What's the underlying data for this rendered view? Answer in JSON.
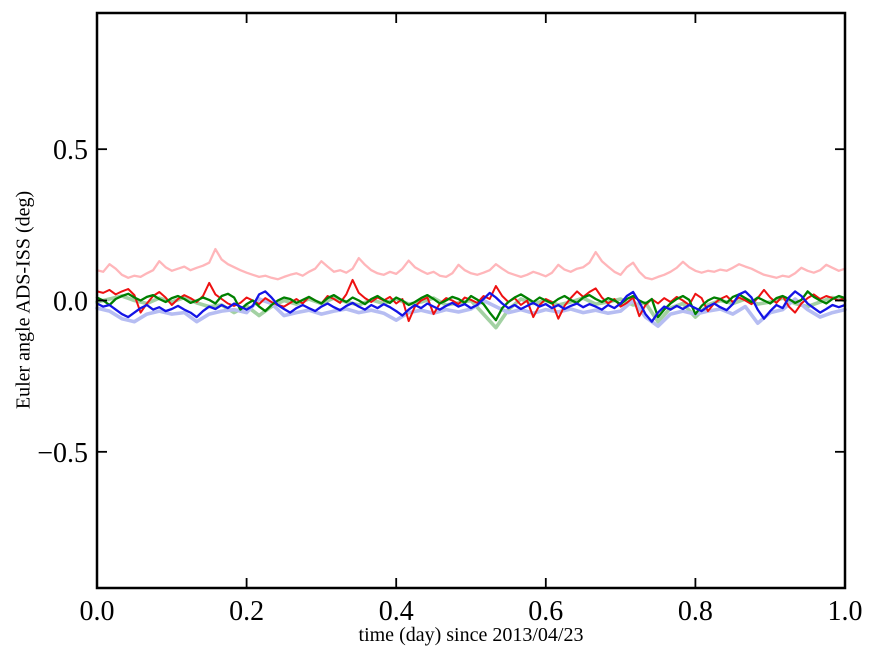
{
  "chart_data": {
    "type": "line",
    "title": "",
    "xlabel": "time (day) since 2013/04/23",
    "ylabel": "Euler angle ADS-ISS (deg)",
    "xlim": [
      0.0,
      1.0
    ],
    "ylim": [
      -0.95,
      0.95
    ],
    "x_ticks": [
      0.0,
      0.2,
      0.4,
      0.6,
      0.8,
      1.0
    ],
    "x_tick_labels": [
      "0.0",
      "0.2",
      "0.4",
      "0.6",
      "0.8",
      "1.0"
    ],
    "y_ticks": [
      0.5,
      0.0,
      -0.5
    ],
    "y_tick_labels": [
      "0.5",
      "0.0",
      "−0.5"
    ],
    "grid": false,
    "legend": "none",
    "frame_color": "#000000",
    "background_color": "#ffffff",
    "series": [
      {
        "name": "light-green",
        "color": "#a3d1a3",
        "width": 3.6,
        "values": [
          -0.005,
          0.005,
          0.015,
          0.0,
          -0.01,
          0.008,
          -0.005,
          0.01,
          -0.008,
          -0.02,
          -0.015,
          -0.04,
          -0.018,
          -0.05,
          -0.02,
          0.0,
          -0.012,
          0.005,
          -0.01,
          0.008,
          -0.005,
          -0.015,
          0.002,
          -0.01,
          0.005,
          -0.012,
          -0.005,
          0.008,
          -0.015,
          -0.008,
          0.0,
          -0.045,
          -0.09,
          -0.03,
          0.005,
          -0.01,
          0.0,
          -0.015,
          -0.005,
          0.008,
          -0.012,
          -0.005,
          0.005,
          -0.015,
          -0.008,
          -0.07,
          -0.025,
          -0.01,
          -0.055,
          -0.015,
          0.0,
          -0.01,
          0.005,
          -0.012,
          -0.005,
          0.008,
          -0.01,
          -0.02,
          -0.005,
          0.01,
          0.0
        ]
      },
      {
        "name": "light-blue",
        "color": "#b6bdf2",
        "width": 3.6,
        "values": [
          -0.025,
          -0.035,
          -0.06,
          -0.07,
          -0.045,
          -0.035,
          -0.045,
          -0.04,
          -0.07,
          -0.045,
          -0.035,
          -0.03,
          -0.04,
          0.005,
          -0.01,
          -0.05,
          -0.04,
          -0.032,
          -0.045,
          -0.035,
          -0.028,
          -0.04,
          -0.032,
          -0.042,
          -0.065,
          -0.04,
          -0.032,
          -0.042,
          -0.03,
          -0.038,
          -0.028,
          0.0,
          -0.02,
          -0.04,
          -0.03,
          -0.042,
          -0.03,
          -0.038,
          -0.028,
          -0.04,
          -0.032,
          -0.042,
          -0.035,
          0.0,
          -0.055,
          -0.085,
          -0.045,
          -0.035,
          -0.045,
          -0.035,
          -0.028,
          -0.045,
          -0.02,
          -0.075,
          -0.04,
          -0.03,
          0.005,
          -0.03,
          -0.055,
          -0.04,
          -0.03
        ]
      },
      {
        "name": "light-red",
        "color": "#ffb6ba",
        "width": 2.3,
        "values": [
          0.1,
          0.095,
          0.12,
          0.105,
          0.085,
          0.075,
          0.082,
          0.078,
          0.09,
          0.1,
          0.13,
          0.11,
          0.098,
          0.105,
          0.112,
          0.1,
          0.108,
          0.115,
          0.125,
          0.17,
          0.135,
          0.12,
          0.11,
          0.1,
          0.092,
          0.085,
          0.078,
          0.082,
          0.075,
          0.07,
          0.078,
          0.085,
          0.09,
          0.082,
          0.095,
          0.105,
          0.13,
          0.112,
          0.095,
          0.1,
          0.092,
          0.105,
          0.14,
          0.118,
          0.1,
          0.09,
          0.085,
          0.095,
          0.088,
          0.105,
          0.132,
          0.11,
          0.098,
          0.088,
          0.095,
          0.082,
          0.078,
          0.09,
          0.118,
          0.1,
          0.09,
          0.085,
          0.092,
          0.1,
          0.12,
          0.105,
          0.092,
          0.085,
          0.078,
          0.085,
          0.095,
          0.088,
          0.08,
          0.092,
          0.118,
          0.102,
          0.095,
          0.105,
          0.11,
          0.125,
          0.16,
          0.13,
          0.112,
          0.095,
          0.085,
          0.11,
          0.125,
          0.095,
          0.075,
          0.07,
          0.078,
          0.085,
          0.095,
          0.108,
          0.128,
          0.11,
          0.098,
          0.092,
          0.098,
          0.095,
          0.102,
          0.098,
          0.108,
          0.12,
          0.112,
          0.105,
          0.095,
          0.085,
          0.08,
          0.075,
          0.082,
          0.078,
          0.09,
          0.108,
          0.098,
          0.092,
          0.1,
          0.118,
          0.108,
          0.098,
          0.105
        ]
      },
      {
        "name": "red",
        "color": "#ee1111",
        "width": 2.0,
        "values": [
          0.03,
          0.025,
          0.035,
          0.02,
          0.03,
          0.038,
          0.018,
          -0.04,
          -0.01,
          0.015,
          0.028,
          0.01,
          -0.015,
          0.005,
          0.018,
          0.008,
          -0.005,
          0.015,
          0.058,
          0.02,
          0.005,
          -0.01,
          -0.018,
          -0.008,
          0.01,
          0.0,
          -0.012,
          0.008,
          -0.005,
          -0.015,
          -0.02,
          -0.008,
          0.005,
          -0.01,
          0.012,
          0.0,
          -0.01,
          0.015,
          0.005,
          -0.008,
          0.02,
          0.068,
          0.025,
          0.008,
          -0.005,
          0.01,
          0.0,
          0.012,
          -0.01,
          0.005,
          -0.068,
          -0.02,
          0.0,
          0.01,
          -0.045,
          -0.01,
          0.008,
          0.0,
          -0.012,
          0.01,
          0.002,
          -0.008,
          0.015,
          0.005,
          0.048,
          0.015,
          -0.005,
          0.008,
          -0.015,
          0.0,
          -0.055,
          -0.015,
          0.005,
          -0.005,
          -0.06,
          -0.018,
          0.008,
          0.03,
          0.012,
          0.028,
          0.04,
          0.01,
          -0.01,
          0.005,
          -0.02,
          -0.008,
          0.01,
          -0.052,
          -0.015,
          0.005,
          -0.01,
          0.008,
          -0.005,
          0.012,
          0.0,
          -0.015,
          0.022,
          0.008,
          -0.035,
          -0.01,
          0.005,
          0.015,
          -0.005,
          0.01,
          0.0,
          -0.012,
          0.008,
          0.035,
          0.01,
          -0.008,
          0.015,
          -0.02,
          -0.04,
          -0.01,
          0.008,
          0.02,
          0.005,
          0.015,
          0.008,
          0.0,
          0.01
        ]
      },
      {
        "name": "green",
        "color": "#008000",
        "width": 2.3,
        "values": [
          0.01,
          0.0,
          -0.015,
          0.005,
          0.015,
          0.022,
          0.01,
          0.0,
          0.012,
          0.018,
          0.005,
          -0.005,
          0.008,
          0.015,
          0.005,
          -0.008,
          0.0,
          0.01,
          0.002,
          -0.01,
          0.015,
          0.022,
          0.01,
          -0.03,
          -0.012,
          0.0,
          -0.02,
          -0.035,
          -0.015,
          0.0,
          0.01,
          0.005,
          -0.008,
          0.002,
          0.012,
          0.0,
          -0.01,
          0.008,
          0.018,
          0.005,
          -0.005,
          0.01,
          0.0,
          -0.012,
          0.005,
          0.015,
          0.002,
          -0.008,
          0.01,
          0.0,
          -0.015,
          -0.005,
          0.008,
          0.018,
          0.005,
          -0.01,
          0.0,
          0.012,
          0.005,
          -0.008,
          0.015,
          0.003,
          -0.012,
          -0.04,
          -0.065,
          -0.025,
          -0.005,
          0.01,
          0.02,
          0.008,
          -0.005,
          0.01,
          0.0,
          -0.01,
          0.005,
          0.015,
          0.002,
          -0.008,
          0.01,
          0.018,
          0.005,
          -0.005,
          0.008,
          0.0,
          -0.012,
          0.005,
          0.015,
          0.0,
          -0.01,
          0.005,
          -0.055,
          -0.03,
          -0.01,
          0.005,
          0.015,
          0.002,
          -0.045,
          -0.018,
          0.0,
          0.01,
          0.005,
          -0.008,
          0.012,
          0.02,
          0.008,
          -0.005,
          0.01,
          0.0,
          -0.01,
          0.008,
          0.015,
          0.005,
          -0.008,
          0.002,
          0.03,
          0.012,
          0.0,
          -0.01,
          0.005,
          0.015,
          0.008
        ]
      },
      {
        "name": "blue",
        "color": "#1414e6",
        "width": 2.3,
        "values": [
          -0.01,
          -0.02,
          -0.015,
          -0.03,
          -0.045,
          -0.055,
          -0.04,
          -0.025,
          -0.015,
          -0.03,
          -0.022,
          -0.035,
          -0.028,
          -0.018,
          -0.03,
          -0.04,
          -0.055,
          -0.035,
          -0.02,
          -0.028,
          -0.015,
          -0.025,
          -0.01,
          -0.02,
          -0.03,
          -0.018,
          0.02,
          0.03,
          0.01,
          -0.015,
          -0.028,
          -0.04,
          -0.025,
          -0.015,
          -0.025,
          -0.035,
          -0.02,
          -0.01,
          -0.022,
          -0.032,
          -0.018,
          -0.008,
          -0.02,
          -0.03,
          -0.015,
          -0.025,
          -0.012,
          -0.022,
          -0.035,
          -0.05,
          -0.03,
          -0.015,
          -0.025,
          -0.01,
          -0.02,
          -0.03,
          -0.018,
          -0.008,
          -0.02,
          -0.012,
          -0.025,
          -0.015,
          0.005,
          0.025,
          0.01,
          -0.01,
          -0.025,
          -0.015,
          -0.028,
          -0.018,
          -0.008,
          -0.02,
          -0.012,
          -0.025,
          -0.015,
          -0.028,
          -0.018,
          -0.01,
          -0.022,
          -0.012,
          -0.02,
          -0.03,
          -0.015,
          -0.025,
          -0.01,
          0.015,
          0.028,
          -0.005,
          -0.045,
          -0.07,
          -0.04,
          -0.02,
          -0.03,
          -0.018,
          -0.028,
          -0.015,
          -0.025,
          -0.035,
          -0.02,
          -0.01,
          -0.022,
          -0.032,
          -0.012,
          0.02,
          0.03,
          0.01,
          -0.03,
          -0.06,
          -0.035,
          -0.015,
          -0.025,
          0.01,
          0.03,
          0.015,
          -0.01,
          -0.025,
          -0.04,
          -0.028,
          -0.015,
          -0.022,
          -0.015
        ]
      }
    ]
  }
}
